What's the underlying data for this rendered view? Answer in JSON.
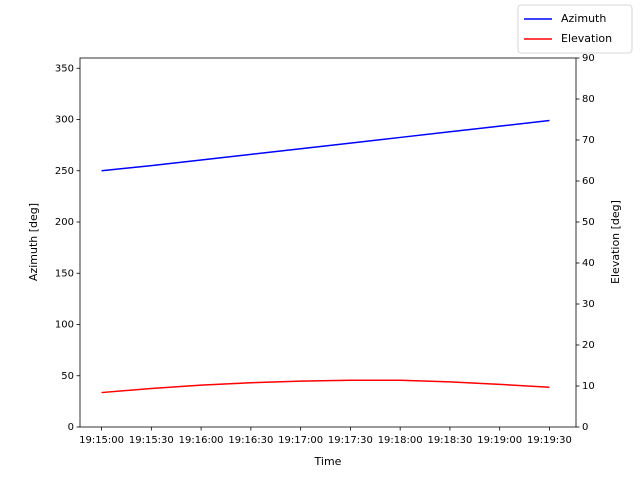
{
  "chart_data": {
    "type": "line",
    "x_label": "Time",
    "y_label": "Azimuth [deg]",
    "y2_label": "Elevation [deg]",
    "x": [
      "19:15:00",
      "19:15:30",
      "19:16:00",
      "19:16:30",
      "19:17:00",
      "19:17:30",
      "19:18:00",
      "19:18:30",
      "19:19:00",
      "19:19:30"
    ],
    "series": [
      {
        "name": "Azimuth",
        "color": "#0000ff",
        "values": [
          250,
          255,
          260.5,
          266,
          271.5,
          277,
          282.5,
          288,
          293.5,
          299
        ]
      },
      {
        "name": "Elevation",
        "color": "#ff0000",
        "axis": "y2",
        "values": [
          8.4,
          9.4,
          10.2,
          10.8,
          11.2,
          11.4,
          11.4,
          11.0,
          10.4,
          9.7
        ]
      }
    ],
    "xlim": [
      "19:14:47",
      "19:19:46"
    ],
    "xticks": [
      "19:15:00",
      "19:15:30",
      "19:16:00",
      "19:16:30",
      "19:17:00",
      "19:17:30",
      "19:18:00",
      "19:18:30",
      "19:19:00",
      "19:19:30"
    ],
    "ylim": [
      0,
      360
    ],
    "yticks": [
      0,
      50,
      100,
      150,
      200,
      250,
      300,
      350
    ],
    "y2lim": [
      0,
      90
    ],
    "y2ticks": [
      0,
      10,
      20,
      30,
      40,
      50,
      60,
      70,
      80,
      90
    ],
    "grid": false,
    "legend": "upper right"
  }
}
